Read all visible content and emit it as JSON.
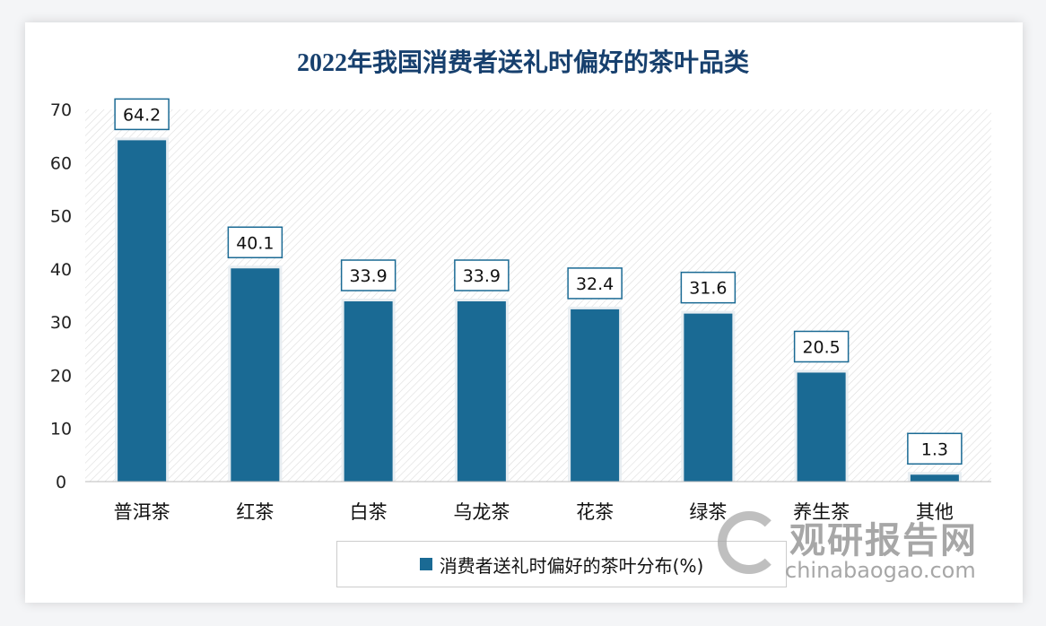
{
  "chart_data": {
    "type": "bar",
    "title": "2022年我国消费者送礼时偏好的茶叶品类",
    "categories": [
      "普洱茶",
      "红茶",
      "白茶",
      "乌龙茶",
      "花茶",
      "绿茶",
      "养生茶",
      "其他"
    ],
    "series": [
      {
        "name": "消费者送礼时偏好的茶叶分布(%)",
        "values": [
          64.2,
          40.1,
          33.9,
          33.9,
          32.4,
          31.6,
          20.5,
          1.3
        ]
      }
    ],
    "yticks": [
      0,
      10,
      20,
      30,
      40,
      50,
      60,
      70
    ],
    "ylim": [
      0,
      70
    ],
    "grid": false,
    "legend": "bottom",
    "colors": {
      "bar": "#1a6a94",
      "title": "#17406e"
    }
  },
  "watermark": {
    "cn": "观研报告网",
    "en": "chinabaogao.com"
  }
}
